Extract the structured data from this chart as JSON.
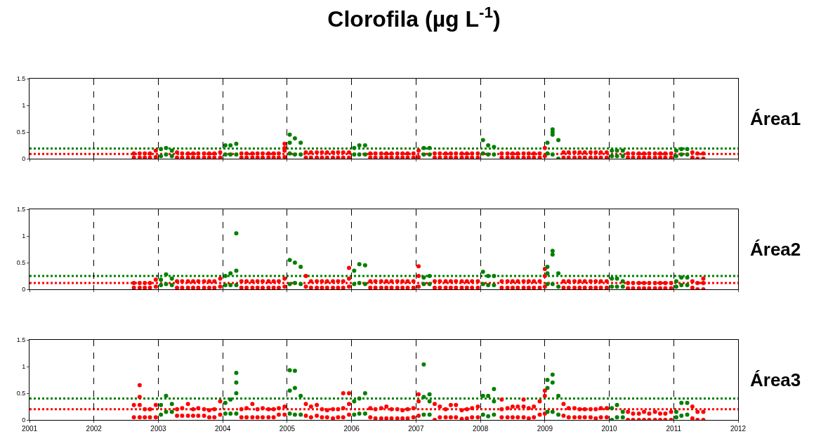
{
  "chart_data": [
    {
      "type": "scatter",
      "title": "Clorofila (µg L$^{-1}$)",
      "annotations": [
        "Área1"
      ],
      "xlim": [
        2001,
        2012
      ],
      "xticks": [
        2001,
        2002,
        2003,
        2004,
        2005,
        2006,
        2007,
        2008,
        2009,
        2010,
        2011,
        2012
      ],
      "ylim": [
        0,
        1.5
      ],
      "yticks": [
        0,
        0.5,
        1,
        1.5
      ],
      "grid": "x",
      "tick_labels": "y",
      "marker": "circle",
      "series": [
        {
          "color": "#ff0000",
          "x": [
            2002.62,
            2002.62,
            2002.71,
            2002.71,
            2002.79,
            2002.79,
            2002.87,
            2002.87,
            2002.96,
            2002.96,
            2003.29,
            2003.29,
            2003.37,
            2003.37,
            2003.46,
            2003.46,
            2003.54,
            2003.54,
            2003.62,
            2003.62,
            2003.71,
            2003.71,
            2003.79,
            2003.79,
            2003.87,
            2003.87,
            2003.96,
            2003.96,
            2004.29,
            2004.29,
            2004.37,
            2004.37,
            2004.46,
            2004.46,
            2004.54,
            2004.54,
            2004.62,
            2004.62,
            2004.71,
            2004.71,
            2004.79,
            2004.79,
            2004.87,
            2004.87,
            2004.96,
            2004.96,
            2004.96,
            2004.96,
            2005.29,
            2005.29,
            2005.37,
            2005.37,
            2005.46,
            2005.46,
            2005.54,
            2005.54,
            2005.62,
            2005.62,
            2005.71,
            2005.71,
            2005.79,
            2005.79,
            2005.87,
            2005.87,
            2005.96,
            2005.96,
            2006.29,
            2006.29,
            2006.37,
            2006.37,
            2006.46,
            2006.46,
            2006.54,
            2006.54,
            2006.62,
            2006.62,
            2006.71,
            2006.71,
            2006.79,
            2006.79,
            2006.87,
            2006.87,
            2006.96,
            2006.96,
            2007.04,
            2007.04,
            2007.29,
            2007.29,
            2007.37,
            2007.37,
            2007.46,
            2007.46,
            2007.54,
            2007.54,
            2007.62,
            2007.62,
            2007.71,
            2007.71,
            2007.79,
            2007.79,
            2007.87,
            2007.87,
            2007.96,
            2007.96,
            2008.33,
            2008.33,
            2008.42,
            2008.42,
            2008.5,
            2008.5,
            2008.58,
            2008.58,
            2008.67,
            2008.67,
            2008.75,
            2008.75,
            2008.83,
            2008.83,
            2008.92,
            2008.92,
            2009.0,
            2009.0,
            2009.29,
            2009.29,
            2009.37,
            2009.37,
            2009.46,
            2009.46,
            2009.54,
            2009.54,
            2009.62,
            2009.62,
            2009.71,
            2009.71,
            2009.79,
            2009.79,
            2009.87,
            2009.87,
            2009.96,
            2009.96,
            2010.29,
            2010.29,
            2010.37,
            2010.37,
            2010.46,
            2010.46,
            2010.54,
            2010.54,
            2010.62,
            2010.62,
            2010.71,
            2010.71,
            2010.79,
            2010.79,
            2010.87,
            2010.87,
            2010.96,
            2010.96,
            2011.29,
            2011.29,
            2011.37,
            2011.37,
            2011.46,
            2011.46
          ],
          "values": [
            0.02,
            0.1,
            0.02,
            0.1,
            0.02,
            0.1,
            0.02,
            0.1,
            0.03,
            0.15,
            0.02,
            0.12,
            0.02,
            0.1,
            0.02,
            0.1,
            0.02,
            0.1,
            0.02,
            0.1,
            0.02,
            0.1,
            0.02,
            0.1,
            0.02,
            0.1,
            0.02,
            0.12,
            0.02,
            0.1,
            0.02,
            0.1,
            0.02,
            0.1,
            0.02,
            0.1,
            0.02,
            0.1,
            0.02,
            0.1,
            0.02,
            0.1,
            0.02,
            0.1,
            0.03,
            0.15,
            0.2,
            0.28,
            0.02,
            0.12,
            0.02,
            0.12,
            0.02,
            0.12,
            0.02,
            0.12,
            0.02,
            0.12,
            0.02,
            0.12,
            0.02,
            0.12,
            0.02,
            0.12,
            0.02,
            0.12,
            0.02,
            0.1,
            0.02,
            0.1,
            0.02,
            0.1,
            0.02,
            0.1,
            0.02,
            0.1,
            0.02,
            0.1,
            0.02,
            0.1,
            0.02,
            0.1,
            0.02,
            0.1,
            0.03,
            0.15,
            0.02,
            0.1,
            0.02,
            0.1,
            0.02,
            0.1,
            0.02,
            0.1,
            0.02,
            0.1,
            0.02,
            0.1,
            0.02,
            0.1,
            0.02,
            0.1,
            0.02,
            0.1,
            0.02,
            0.1,
            0.02,
            0.1,
            0.02,
            0.1,
            0.02,
            0.1,
            0.02,
            0.1,
            0.02,
            0.1,
            0.02,
            0.1,
            0.02,
            0.1,
            0.05,
            0.2,
            0.02,
            0.12,
            0.02,
            0.12,
            0.02,
            0.12,
            0.02,
            0.12,
            0.02,
            0.12,
            0.02,
            0.12,
            0.02,
            0.12,
            0.02,
            0.12,
            0.02,
            0.12,
            0.02,
            0.1,
            0.02,
            0.1,
            0.02,
            0.1,
            0.02,
            0.1,
            0.02,
            0.1,
            0.02,
            0.1,
            0.02,
            0.1,
            0.02,
            0.1,
            0.02,
            0.1,
            0.02,
            0.12,
            0.0,
            0.1,
            0.0,
            0.1
          ]
        },
        {
          "color": "#008000",
          "x": [
            2003.04,
            2003.04,
            2003.12,
            2003.12,
            2003.21,
            2003.21,
            2004.04,
            2004.04,
            2004.12,
            2004.12,
            2004.21,
            2004.21,
            2005.04,
            2005.04,
            2005.04,
            2005.12,
            2005.12,
            2005.21,
            2005.21,
            2006.04,
            2006.04,
            2006.12,
            2006.12,
            2006.21,
            2006.21,
            2007.12,
            2007.12,
            2007.21,
            2007.21,
            2008.04,
            2008.04,
            2008.12,
            2008.12,
            2008.21,
            2008.21,
            2009.04,
            2009.04,
            2009.12,
            2009.12,
            2009.12,
            2009.12,
            2009.21,
            2009.21,
            2010.04,
            2010.04,
            2010.12,
            2010.12,
            2010.21,
            2010.21,
            2011.04,
            2011.04,
            2011.12,
            2011.12,
            2011.21,
            2011.21
          ],
          "values": [
            0.05,
            0.18,
            0.08,
            0.2,
            0.05,
            0.15,
            0.08,
            0.25,
            0.08,
            0.25,
            0.08,
            0.28,
            0.1,
            0.3,
            0.45,
            0.08,
            0.38,
            0.08,
            0.3,
            0.08,
            0.2,
            0.08,
            0.25,
            0.08,
            0.25,
            0.08,
            0.2,
            0.08,
            0.2,
            0.1,
            0.35,
            0.08,
            0.25,
            0.08,
            0.22,
            0.1,
            0.3,
            0.08,
            0.45,
            0.5,
            0.55,
            0.0,
            0.35,
            0.05,
            0.15,
            0.05,
            0.15,
            0.05,
            0.15,
            0.05,
            0.15,
            0.08,
            0.18,
            0.08,
            0.18
          ]
        }
      ],
      "ref_lines": [
        {
          "axis": "y",
          "value": 0.19,
          "color": "#008000",
          "line_style": "dotted"
        },
        {
          "axis": "y",
          "value": 0.09,
          "color": "#ff0000",
          "line_style": "dotted"
        }
      ]
    },
    {
      "type": "scatter",
      "annotations": [
        "Área2"
      ],
      "xlim": [
        2001,
        2012
      ],
      "xticks": [
        2001,
        2002,
        2003,
        2004,
        2005,
        2006,
        2007,
        2008,
        2009,
        2010,
        2011,
        2012
      ],
      "ylim": [
        0,
        1.5
      ],
      "yticks": [
        0,
        0.5,
        1,
        1.5
      ],
      "grid": "x",
      "tick_labels": "y",
      "marker": "circle",
      "series": [
        {
          "color": "#ff0000",
          "x": [
            2002.62,
            2002.62,
            2002.71,
            2002.71,
            2002.79,
            2002.79,
            2002.87,
            2002.87,
            2002.96,
            2002.96,
            2003.29,
            2003.29,
            2003.37,
            2003.37,
            2003.46,
            2003.46,
            2003.54,
            2003.54,
            2003.62,
            2003.62,
            2003.71,
            2003.71,
            2003.79,
            2003.79,
            2003.87,
            2003.87,
            2003.96,
            2003.96,
            2004.29,
            2004.29,
            2004.37,
            2004.37,
            2004.46,
            2004.46,
            2004.54,
            2004.54,
            2004.62,
            2004.62,
            2004.71,
            2004.71,
            2004.79,
            2004.79,
            2004.87,
            2004.87,
            2004.96,
            2004.96,
            2005.29,
            2005.29,
            2005.37,
            2005.37,
            2005.46,
            2005.46,
            2005.54,
            2005.54,
            2005.62,
            2005.62,
            2005.71,
            2005.71,
            2005.79,
            2005.79,
            2005.87,
            2005.87,
            2005.96,
            2005.96,
            2005.96,
            2006.29,
            2006.29,
            2006.37,
            2006.37,
            2006.46,
            2006.46,
            2006.54,
            2006.54,
            2006.62,
            2006.62,
            2006.71,
            2006.71,
            2006.79,
            2006.79,
            2006.87,
            2006.87,
            2006.96,
            2006.96,
            2007.04,
            2007.04,
            2007.04,
            2007.29,
            2007.29,
            2007.37,
            2007.37,
            2007.46,
            2007.46,
            2007.54,
            2007.54,
            2007.62,
            2007.62,
            2007.71,
            2007.71,
            2007.79,
            2007.79,
            2007.87,
            2007.87,
            2007.96,
            2007.96,
            2008.33,
            2008.33,
            2008.42,
            2008.42,
            2008.5,
            2008.5,
            2008.58,
            2008.58,
            2008.67,
            2008.67,
            2008.75,
            2008.75,
            2008.83,
            2008.83,
            2008.92,
            2008.92,
            2009.0,
            2009.0,
            2009.0,
            2009.29,
            2009.29,
            2009.37,
            2009.37,
            2009.46,
            2009.46,
            2009.54,
            2009.54,
            2009.62,
            2009.62,
            2009.71,
            2009.71,
            2009.79,
            2009.79,
            2009.87,
            2009.87,
            2009.96,
            2009.96,
            2010.29,
            2010.29,
            2010.37,
            2010.37,
            2010.46,
            2010.46,
            2010.54,
            2010.54,
            2010.62,
            2010.62,
            2010.71,
            2010.71,
            2010.79,
            2010.79,
            2010.87,
            2010.87,
            2010.96,
            2010.96,
            2011.29,
            2011.29,
            2011.37,
            2011.37,
            2011.46,
            2011.46,
            2011.46
          ],
          "values": [
            0.03,
            0.12,
            0.03,
            0.12,
            0.03,
            0.12,
            0.03,
            0.12,
            0.05,
            0.18,
            0.03,
            0.15,
            0.03,
            0.15,
            0.03,
            0.15,
            0.03,
            0.15,
            0.03,
            0.15,
            0.03,
            0.15,
            0.03,
            0.15,
            0.03,
            0.15,
            0.05,
            0.2,
            0.03,
            0.15,
            0.03,
            0.15,
            0.03,
            0.15,
            0.03,
            0.15,
            0.03,
            0.15,
            0.03,
            0.15,
            0.03,
            0.15,
            0.03,
            0.15,
            0.05,
            0.2,
            0.05,
            0.25,
            0.03,
            0.15,
            0.03,
            0.15,
            0.03,
            0.15,
            0.03,
            0.15,
            0.03,
            0.15,
            0.03,
            0.15,
            0.03,
            0.15,
            0.05,
            0.2,
            0.4,
            0.03,
            0.15,
            0.03,
            0.15,
            0.03,
            0.15,
            0.03,
            0.15,
            0.03,
            0.15,
            0.03,
            0.15,
            0.03,
            0.15,
            0.03,
            0.15,
            0.03,
            0.15,
            0.05,
            0.25,
            0.43,
            0.03,
            0.15,
            0.03,
            0.15,
            0.03,
            0.15,
            0.03,
            0.15,
            0.03,
            0.15,
            0.03,
            0.15,
            0.03,
            0.15,
            0.03,
            0.15,
            0.03,
            0.15,
            0.03,
            0.15,
            0.03,
            0.15,
            0.03,
            0.15,
            0.03,
            0.15,
            0.03,
            0.15,
            0.03,
            0.15,
            0.03,
            0.15,
            0.03,
            0.15,
            0.05,
            0.25,
            0.38,
            0.03,
            0.15,
            0.03,
            0.15,
            0.03,
            0.15,
            0.03,
            0.15,
            0.03,
            0.15,
            0.03,
            0.15,
            0.03,
            0.15,
            0.03,
            0.15,
            0.03,
            0.15,
            0.02,
            0.12,
            0.02,
            0.12,
            0.02,
            0.12,
            0.02,
            0.12,
            0.02,
            0.12,
            0.02,
            0.12,
            0.02,
            0.12,
            0.02,
            0.12,
            0.02,
            0.12,
            0.03,
            0.15,
            0.0,
            0.12,
            0.0,
            0.12,
            0.2
          ]
        },
        {
          "color": "#008000",
          "x": [
            2003.04,
            2003.04,
            2003.12,
            2003.12,
            2003.21,
            2003.21,
            2004.04,
            2004.04,
            2004.12,
            2004.12,
            2004.21,
            2004.21,
            2004.21,
            2005.04,
            2005.04,
            2005.12,
            2005.12,
            2005.21,
            2005.21,
            2006.04,
            2006.04,
            2006.12,
            2006.12,
            2006.21,
            2006.21,
            2007.12,
            2007.12,
            2007.21,
            2007.21,
            2008.04,
            2008.04,
            2008.12,
            2008.12,
            2008.21,
            2008.21,
            2009.04,
            2009.04,
            2009.04,
            2009.12,
            2009.12,
            2009.12,
            2009.21,
            2009.21,
            2010.04,
            2010.04,
            2010.12,
            2010.12,
            2010.21,
            2010.21,
            2011.04,
            2011.04,
            2011.12,
            2011.12,
            2011.21,
            2011.21
          ],
          "values": [
            0.08,
            0.18,
            0.1,
            0.28,
            0.08,
            0.2,
            0.08,
            0.25,
            0.08,
            0.3,
            0.08,
            0.35,
            1.05,
            0.1,
            0.55,
            0.12,
            0.5,
            0.1,
            0.42,
            0.1,
            0.35,
            0.12,
            0.47,
            0.1,
            0.45,
            0.1,
            0.22,
            0.1,
            0.25,
            0.1,
            0.33,
            0.08,
            0.25,
            0.08,
            0.25,
            0.1,
            0.3,
            0.42,
            0.1,
            0.65,
            0.72,
            0.05,
            0.3,
            0.05,
            0.2,
            0.05,
            0.2,
            0.05,
            0.15,
            0.05,
            0.15,
            0.08,
            0.22,
            0.08,
            0.22
          ]
        }
      ],
      "ref_lines": [
        {
          "axis": "y",
          "value": 0.25,
          "color": "#008000",
          "line_style": "dotted"
        },
        {
          "axis": "y",
          "value": 0.12,
          "color": "#ff0000",
          "line_style": "dotted"
        }
      ]
    },
    {
      "type": "scatter",
      "annotations": [
        "Área3"
      ],
      "xlim": [
        2001,
        2012
      ],
      "xticks": [
        2001,
        2002,
        2003,
        2004,
        2005,
        2006,
        2007,
        2008,
        2009,
        2010,
        2011,
        2012
      ],
      "ylim": [
        0,
        1.5
      ],
      "yticks": [
        0,
        0.5,
        1,
        1.5
      ],
      "grid": "x",
      "marker": "circle",
      "series": [
        {
          "color": "#ff0000",
          "x": [
            2002.62,
            2002.62,
            2002.71,
            2002.71,
            2002.71,
            2002.71,
            2002.79,
            2002.79,
            2002.87,
            2002.87,
            2002.96,
            2002.96,
            2003.29,
            2003.29,
            2003.37,
            2003.37,
            2003.46,
            2003.46,
            2003.54,
            2003.54,
            2003.62,
            2003.62,
            2003.71,
            2003.71,
            2003.79,
            2003.79,
            2003.87,
            2003.87,
            2003.96,
            2003.96,
            2004.29,
            2004.29,
            2004.37,
            2004.37,
            2004.46,
            2004.46,
            2004.54,
            2004.54,
            2004.62,
            2004.62,
            2004.71,
            2004.71,
            2004.79,
            2004.79,
            2004.87,
            2004.87,
            2004.96,
            2004.96,
            2005.29,
            2005.29,
            2005.37,
            2005.37,
            2005.46,
            2005.46,
            2005.54,
            2005.54,
            2005.62,
            2005.62,
            2005.71,
            2005.71,
            2005.79,
            2005.79,
            2005.87,
            2005.87,
            2005.87,
            2005.96,
            2005.96,
            2005.96,
            2006.29,
            2006.29,
            2006.37,
            2006.37,
            2006.46,
            2006.46,
            2006.54,
            2006.54,
            2006.62,
            2006.62,
            2006.71,
            2006.71,
            2006.79,
            2006.79,
            2006.87,
            2006.87,
            2006.96,
            2006.96,
            2007.04,
            2007.04,
            2007.04,
            2007.29,
            2007.29,
            2007.37,
            2007.37,
            2007.46,
            2007.46,
            2007.54,
            2007.54,
            2007.62,
            2007.62,
            2007.71,
            2007.71,
            2007.79,
            2007.79,
            2007.87,
            2007.87,
            2007.96,
            2007.96,
            2008.33,
            2008.33,
            2008.33,
            2008.42,
            2008.42,
            2008.5,
            2008.5,
            2008.58,
            2008.58,
            2008.67,
            2008.67,
            2008.67,
            2008.75,
            2008.75,
            2008.83,
            2008.83,
            2008.92,
            2008.92,
            2009.0,
            2009.0,
            2009.0,
            2009.29,
            2009.29,
            2009.37,
            2009.37,
            2009.46,
            2009.46,
            2009.54,
            2009.54,
            2009.62,
            2009.62,
            2009.71,
            2009.71,
            2009.79,
            2009.79,
            2009.87,
            2009.87,
            2009.96,
            2009.96,
            2010.29,
            2010.29,
            2010.37,
            2010.37,
            2010.46,
            2010.46,
            2010.54,
            2010.54,
            2010.62,
            2010.62,
            2010.71,
            2010.71,
            2010.79,
            2010.79,
            2010.87,
            2010.87,
            2010.96,
            2010.96,
            2011.29,
            2011.29,
            2011.37,
            2011.37,
            2011.46,
            2011.46
          ],
          "values": [
            0.05,
            0.28,
            0.05,
            0.28,
            0.43,
            0.65,
            0.05,
            0.2,
            0.05,
            0.2,
            0.05,
            0.28,
            0.08,
            0.2,
            0.08,
            0.22,
            0.08,
            0.3,
            0.08,
            0.2,
            0.08,
            0.22,
            0.08,
            0.2,
            0.05,
            0.18,
            0.05,
            0.2,
            0.1,
            0.35,
            0.05,
            0.2,
            0.05,
            0.22,
            0.05,
            0.3,
            0.05,
            0.2,
            0.05,
            0.22,
            0.05,
            0.2,
            0.05,
            0.2,
            0.1,
            0.22,
            0.1,
            0.25,
            0.08,
            0.3,
            0.05,
            0.25,
            0.08,
            0.28,
            0.05,
            0.2,
            0.05,
            0.18,
            0.03,
            0.2,
            0.05,
            0.2,
            0.05,
            0.22,
            0.5,
            0.1,
            0.3,
            0.5,
            0.05,
            0.22,
            0.03,
            0.2,
            0.03,
            0.22,
            0.03,
            0.25,
            0.03,
            0.2,
            0.03,
            0.2,
            0.03,
            0.18,
            0.03,
            0.2,
            0.05,
            0.22,
            0.08,
            0.35,
            0.48,
            0.0,
            0.3,
            0.05,
            0.25,
            0.05,
            0.2,
            0.05,
            0.28,
            0.05,
            0.28,
            0.02,
            0.18,
            0.03,
            0.2,
            0.05,
            0.22,
            0.05,
            0.25,
            0.05,
            0.2,
            0.38,
            0.05,
            0.22,
            0.05,
            0.25,
            0.05,
            0.25,
            0.05,
            0.25,
            0.38,
            0.03,
            0.22,
            0.05,
            0.25,
            0.1,
            0.35,
            0.12,
            0.45,
            0.55,
            0.08,
            0.3,
            0.05,
            0.22,
            0.05,
            0.22,
            0.05,
            0.2,
            0.05,
            0.2,
            0.05,
            0.2,
            0.03,
            0.2,
            0.05,
            0.22,
            0.05,
            0.22,
            0.0,
            0.15,
            0.0,
            0.12,
            0.0,
            0.12,
            0.0,
            0.15,
            0.0,
            0.12,
            0.0,
            0.15,
            0.0,
            0.12,
            0.0,
            0.12,
            0.0,
            0.15,
            0.03,
            0.25,
            0.0,
            0.15,
            0.0,
            0.15
          ]
        },
        {
          "color": "#008000",
          "x": [
            2003.04,
            2003.04,
            2003.12,
            2003.12,
            2003.21,
            2003.21,
            2004.04,
            2004.04,
            2004.12,
            2004.12,
            2004.21,
            2004.21,
            2004.21,
            2004.21,
            2005.04,
            2005.04,
            2005.04,
            2005.12,
            2005.12,
            2005.12,
            2005.21,
            2005.21,
            2006.04,
            2006.04,
            2006.12,
            2006.12,
            2006.21,
            2006.21,
            2007.12,
            2007.12,
            2007.12,
            2007.21,
            2007.21,
            2007.21,
            2008.04,
            2008.04,
            2008.12,
            2008.12,
            2008.21,
            2008.21,
            2008.21,
            2009.04,
            2009.04,
            2009.04,
            2009.12,
            2009.12,
            2009.12,
            2009.21,
            2009.21,
            2010.04,
            2010.04,
            2010.12,
            2010.12,
            2010.21,
            2010.21,
            2011.04,
            2011.04,
            2011.12,
            2011.12,
            2011.21,
            2011.21
          ],
          "values": [
            0.1,
            0.28,
            0.15,
            0.45,
            0.15,
            0.3,
            0.12,
            0.32,
            0.12,
            0.38,
            0.12,
            0.5,
            0.7,
            0.88,
            0.12,
            0.55,
            0.93,
            0.1,
            0.6,
            0.92,
            0.1,
            0.45,
            0.1,
            0.35,
            0.12,
            0.4,
            0.12,
            0.5,
            0.1,
            0.43,
            1.04,
            0.1,
            0.35,
            0.48,
            0.1,
            0.45,
            0.07,
            0.45,
            0.1,
            0.35,
            0.58,
            0.15,
            0.6,
            0.75,
            0.15,
            0.7,
            0.85,
            0.1,
            0.45,
            0.0,
            0.22,
            0.05,
            0.28,
            0.05,
            0.15,
            0.05,
            0.15,
            0.08,
            0.32,
            0.1,
            0.32
          ]
        }
      ],
      "ref_lines": [
        {
          "axis": "y",
          "value": 0.4,
          "color": "#008000",
          "line_style": "dotted"
        },
        {
          "axis": "y",
          "value": 0.2,
          "color": "#ff0000",
          "line_style": "dotted"
        }
      ]
    }
  ]
}
